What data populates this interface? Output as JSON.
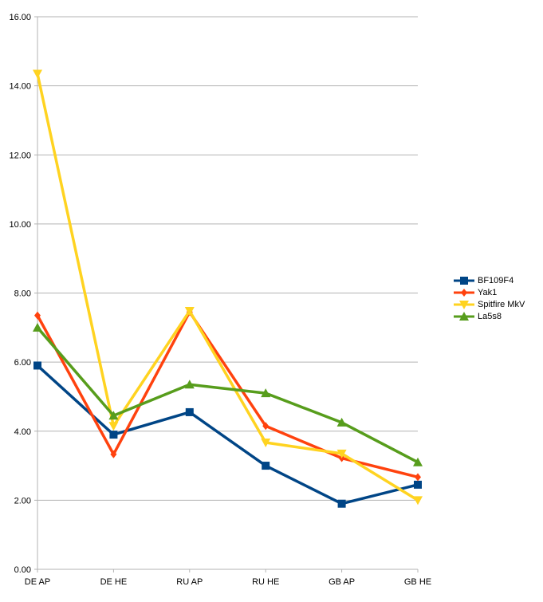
{
  "chart_data": {
    "type": "line",
    "title": "",
    "xlabel": "",
    "ylabel": "",
    "categories": [
      "DE AP",
      "DE HE",
      "RU AP",
      "RU HE",
      "GB AP",
      "GB HE"
    ],
    "ylim": [
      0,
      16
    ],
    "ytick_step": 2,
    "ytick_labels": [
      "0.00",
      "2.00",
      "4.00",
      "6.00",
      "8.00",
      "10.00",
      "12.00",
      "14.00",
      "16.00"
    ],
    "grid": true,
    "legend_position": "right",
    "series": [
      {
        "name": "BF109F4",
        "color": "#004586",
        "marker": "square",
        "values": [
          5.9,
          3.9,
          4.55,
          3.0,
          1.9,
          2.45
        ]
      },
      {
        "name": "Yak1",
        "color": "#ff420e",
        "marker": "diamond",
        "values": [
          7.35,
          3.33,
          7.45,
          4.15,
          3.22,
          2.67
        ]
      },
      {
        "name": "Spitfire MkV",
        "color": "#ffd320",
        "marker": "triangle-down",
        "values": [
          14.35,
          4.15,
          7.48,
          3.67,
          3.35,
          2.0
        ]
      },
      {
        "name": "La5s8",
        "color": "#579d1c",
        "marker": "triangle-up",
        "values": [
          7.0,
          4.45,
          5.35,
          5.1,
          4.25,
          3.1
        ]
      }
    ]
  }
}
